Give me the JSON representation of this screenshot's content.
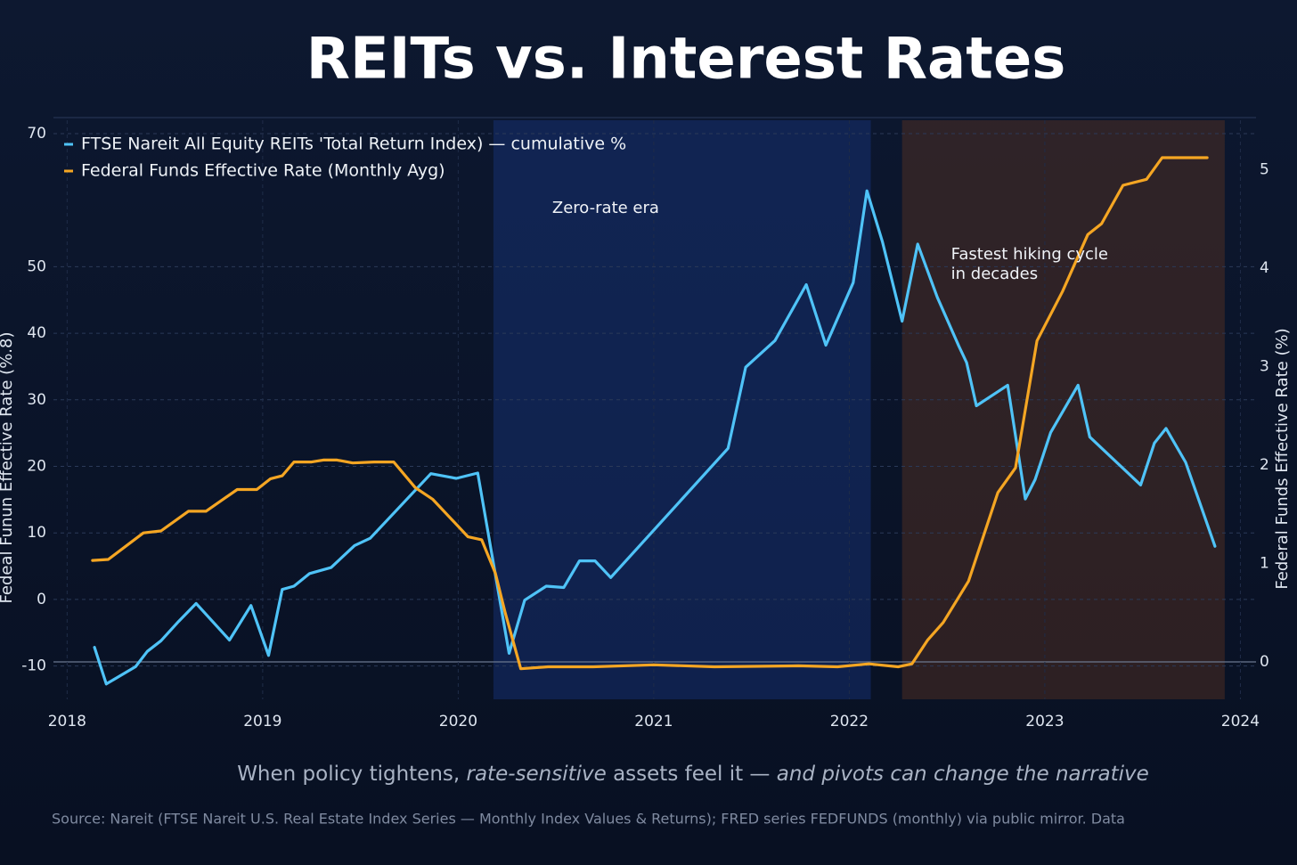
{
  "chart_data": {
    "type": "line",
    "title": "REITs vs. Interest Rates",
    "subtitle": [
      {
        "text": "When policy tightens, ",
        "italic": false
      },
      {
        "text": "rate-sensitive",
        "italic": true
      },
      {
        "text": " assets feel it — ",
        "italic": false
      },
      {
        "text": "and pivots can change the narrative",
        "italic": true
      }
    ],
    "source": "Source: Nareit (FTSE Nareit U.S. Real Estate Index Series — Monthly Index Values & Returns); FRED series FEDFUNDS (monthly) via public mirror. Data",
    "ylabel": "Fedeal Funun Effective Rate (%.8)",
    "y2label": "Federal Funds Effective Rate (%)",
    "xlim": [
      2017.93,
      2024.08
    ],
    "xticks": [
      2018,
      2019,
      2020,
      2021,
      2022,
      2023,
      2024
    ],
    "ylim": [
      -15,
      72
    ],
    "yticks": [
      -10,
      0,
      10,
      20,
      30,
      40,
      50,
      70
    ],
    "y2lim": [
      -0.38,
      5.5
    ],
    "y2ticks": [
      0,
      1,
      2,
      3,
      4,
      5
    ],
    "grid": true,
    "legend": "upper left",
    "regions": [
      {
        "label": "Zero-rate era",
        "start": 2020.18,
        "end": 2022.11,
        "color": "#1a3a8a"
      },
      {
        "label": "Fastest hiking cycle\nin decades",
        "start": 2022.27,
        "end": 2023.92,
        "color": "#5a3322"
      }
    ],
    "series": [
      {
        "name": "FTSE Nareit All Equity REITs 'Total Return Index) — cumulative %",
        "color": "#4fc3f7",
        "x": [
          2018.14,
          2018.2,
          2018.35,
          2018.41,
          2018.48,
          2018.57,
          2018.66,
          2018.83,
          2018.94,
          2019.03,
          2019.1,
          2019.16,
          2019.24,
          2019.35,
          2019.47,
          2019.55,
          2019.86,
          2019.99,
          2020.1,
          2020.26,
          2020.34,
          2020.45,
          2020.54,
          2020.62,
          2020.7,
          2020.78,
          2021.38,
          2021.47,
          2021.62,
          2021.78,
          2021.88,
          2022.02,
          2022.09,
          2022.17,
          2022.27,
          2022.35,
          2022.45,
          2022.56,
          2022.6,
          2022.65,
          2022.81,
          2022.9,
          2022.95,
          2023.03,
          2023.17,
          2023.23,
          2023.49,
          2023.56,
          2023.62,
          2023.72,
          2023.87
        ],
        "values": [
          -7.2,
          -12.7,
          -10.1,
          -7.8,
          -6.2,
          -3.3,
          -0.6,
          -6.1,
          -0.9,
          -8.4,
          1.5,
          2.0,
          3.9,
          4.8,
          8.1,
          9.2,
          18.9,
          18.2,
          19.0,
          -8.1,
          -0.1,
          2.0,
          1.8,
          5.8,
          5.8,
          3.3,
          22.7,
          34.9,
          38.9,
          47.3,
          38.2,
          47.6,
          61.4,
          53.7,
          41.8,
          53.4,
          45.4,
          38.1,
          35.6,
          29.1,
          32.2,
          15.1,
          18.0,
          25.1,
          32.2,
          24.4,
          17.2,
          23.5,
          25.7,
          20.6,
          8.0
        ]
      },
      {
        "name": "Federal Funds Effective Rate (Monthly Ayg)",
        "color": "#f5a623",
        "axis": "y2",
        "x": [
          2018.13,
          2018.21,
          2018.39,
          2018.48,
          2018.62,
          2018.71,
          2018.87,
          2018.97,
          2019.04,
          2019.1,
          2019.16,
          2019.25,
          2019.31,
          2019.38,
          2019.46,
          2019.57,
          2019.67,
          2019.78,
          2019.87,
          2020.05,
          2020.12,
          2020.19,
          2020.24,
          2020.32,
          2020.46,
          2020.69,
          2021.0,
          2021.31,
          2021.74,
          2021.94,
          2022.1,
          2022.25,
          2022.32,
          2022.4,
          2022.48,
          2022.61,
          2022.76,
          2022.85,
          2022.96,
          2023.09,
          2023.22,
          2023.29,
          2023.4,
          2023.52,
          2023.6,
          2023.83
        ],
        "values": [
          1.03,
          1.04,
          1.31,
          1.33,
          1.53,
          1.53,
          1.75,
          1.75,
          1.86,
          1.89,
          2.03,
          2.03,
          2.05,
          2.05,
          2.02,
          2.03,
          2.03,
          1.77,
          1.65,
          1.27,
          1.24,
          0.9,
          0.5,
          -0.07,
          -0.05,
          -0.05,
          -0.03,
          -0.05,
          -0.04,
          -0.05,
          -0.02,
          -0.05,
          -0.02,
          0.22,
          0.4,
          0.82,
          1.72,
          1.97,
          3.26,
          3.76,
          4.34,
          4.45,
          4.84,
          4.9,
          5.12,
          5.12
        ]
      }
    ]
  }
}
